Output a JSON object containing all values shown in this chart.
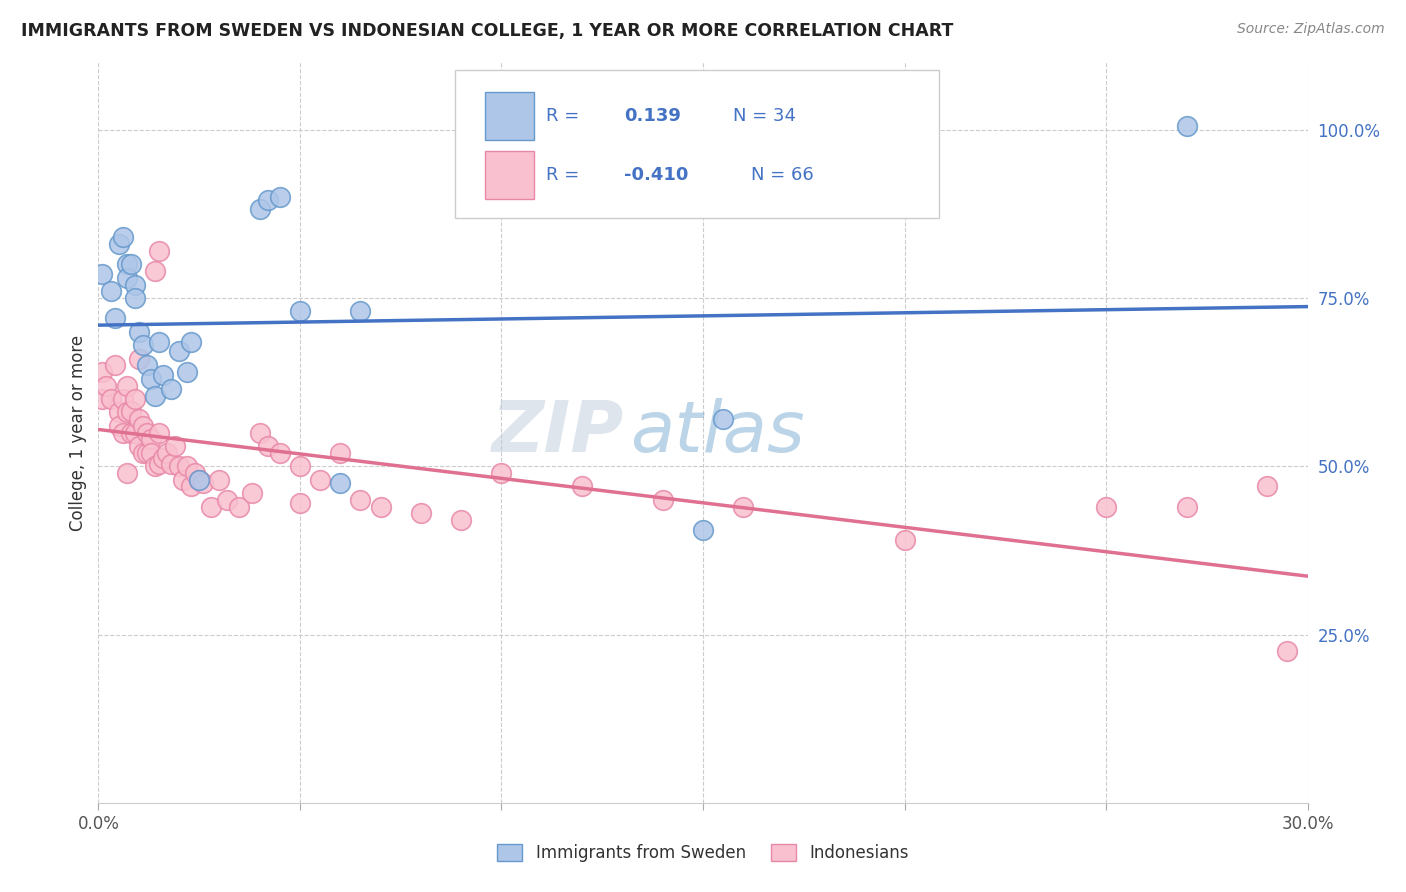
{
  "title": "IMMIGRANTS FROM SWEDEN VS INDONESIAN COLLEGE, 1 YEAR OR MORE CORRELATION CHART",
  "source": "Source: ZipAtlas.com",
  "ylabel": "College, 1 year or more",
  "x_min": 0.0,
  "x_max": 0.3,
  "y_tick_positions": [
    0.25,
    0.5,
    0.75,
    1.0
  ],
  "y_tick_labels": [
    "25.0%",
    "50.0%",
    "75.0%",
    "100.0%"
  ],
  "x_tick_pos": [
    0.0,
    0.05,
    0.1,
    0.15,
    0.2,
    0.25,
    0.3
  ],
  "x_tick_labels": [
    "0.0%",
    "",
    "",
    "",
    "",
    "",
    "30.0%"
  ],
  "blue_fill": "#aec6e8",
  "blue_edge": "#6699cc",
  "pink_fill": "#f9c0cf",
  "pink_edge": "#e888a8",
  "blue_line_color": "#4472c4",
  "pink_line_color": "#e07090",
  "legend_text_color": "#4472c4",
  "watermark": "ZIPatlas",
  "sweden_x": [
    0.001,
    0.003,
    0.004,
    0.005,
    0.006,
    0.007,
    0.007,
    0.008,
    0.009,
    0.009,
    0.01,
    0.011,
    0.012,
    0.013,
    0.014,
    0.015,
    0.016,
    0.018,
    0.02,
    0.022,
    0.023,
    0.025,
    0.04,
    0.042,
    0.045,
    0.05,
    0.06,
    0.065,
    0.15,
    0.155,
    0.27
  ],
  "sweden_y": [
    0.785,
    0.76,
    0.72,
    0.83,
    0.84,
    0.8,
    0.78,
    0.8,
    0.77,
    0.75,
    0.7,
    0.68,
    0.65,
    0.63,
    0.605,
    0.685,
    0.635,
    0.615,
    0.672,
    0.64,
    0.685,
    0.48,
    0.882,
    0.895,
    0.9,
    0.73,
    0.475,
    0.73,
    0.405,
    0.57,
    1.005
  ],
  "indonesian_x": [
    0.001,
    0.001,
    0.002,
    0.003,
    0.004,
    0.005,
    0.005,
    0.006,
    0.006,
    0.007,
    0.007,
    0.008,
    0.008,
    0.009,
    0.009,
    0.01,
    0.01,
    0.011,
    0.011,
    0.012,
    0.012,
    0.013,
    0.013,
    0.014,
    0.014,
    0.015,
    0.015,
    0.016,
    0.017,
    0.018,
    0.019,
    0.02,
    0.021,
    0.022,
    0.023,
    0.024,
    0.025,
    0.026,
    0.028,
    0.03,
    0.032,
    0.035,
    0.038,
    0.04,
    0.042,
    0.045,
    0.05,
    0.055,
    0.06,
    0.065,
    0.07,
    0.08,
    0.09,
    0.1,
    0.12,
    0.14,
    0.16,
    0.2,
    0.25,
    0.27,
    0.29,
    0.05,
    0.007,
    0.01,
    0.015,
    0.295
  ],
  "indonesian_y": [
    0.64,
    0.6,
    0.62,
    0.6,
    0.65,
    0.58,
    0.56,
    0.6,
    0.55,
    0.62,
    0.58,
    0.55,
    0.582,
    0.6,
    0.55,
    0.57,
    0.53,
    0.56,
    0.52,
    0.52,
    0.55,
    0.54,
    0.52,
    0.5,
    0.79,
    0.503,
    0.55,
    0.512,
    0.52,
    0.503,
    0.53,
    0.5,
    0.48,
    0.5,
    0.47,
    0.49,
    0.48,
    0.475,
    0.44,
    0.48,
    0.45,
    0.44,
    0.46,
    0.55,
    0.53,
    0.52,
    0.5,
    0.48,
    0.52,
    0.45,
    0.44,
    0.43,
    0.42,
    0.49,
    0.47,
    0.45,
    0.44,
    0.39,
    0.44,
    0.44,
    0.47,
    0.445,
    0.49,
    0.66,
    0.82,
    0.225
  ]
}
